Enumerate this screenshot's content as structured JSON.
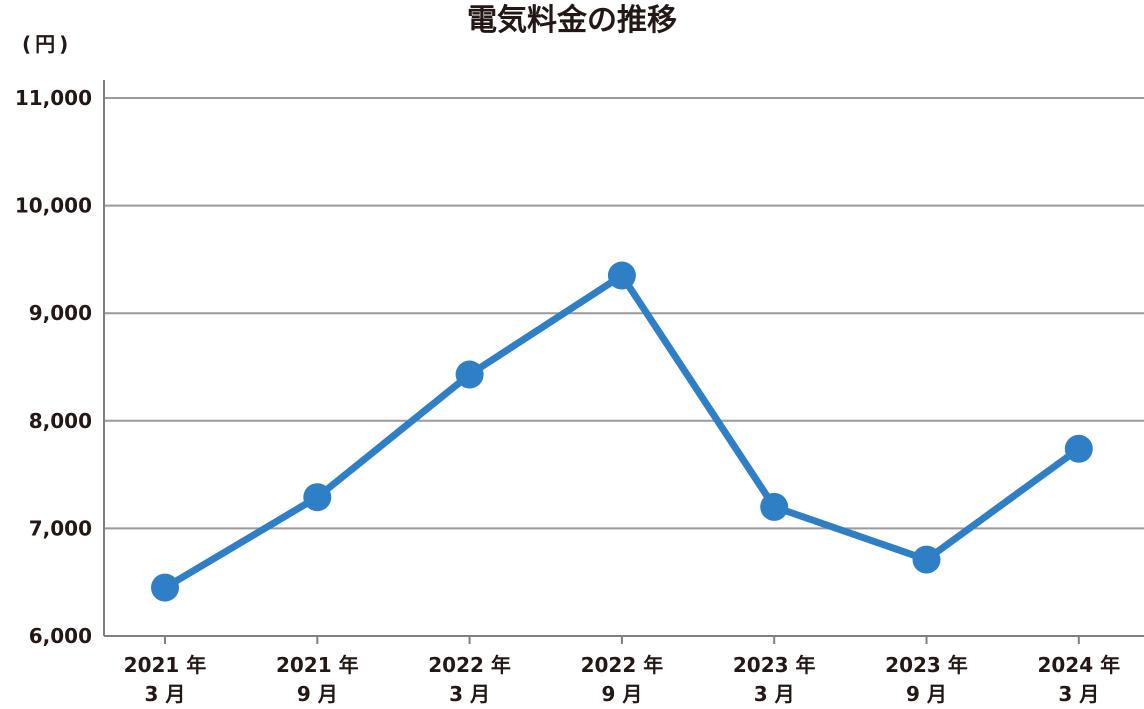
{
  "title": "電気料金の推移",
  "unit": "(円)",
  "chart_data": {
    "type": "line",
    "title": "電気料金の推移",
    "ylabel": "(円)",
    "xlabel": "",
    "ylim": [
      6000,
      11000
    ],
    "yticks": [
      "6,000",
      "7,000",
      "8,000",
      "9,000",
      "10,000",
      "11,000"
    ],
    "ytick_values": [
      6000,
      7000,
      8000,
      9000,
      10000,
      11000
    ],
    "grid": true,
    "categories": [
      {
        "line1": "2021 年",
        "line2": "3 月"
      },
      {
        "line1": "2021 年",
        "line2": "9 月"
      },
      {
        "line1": "2022 年",
        "line2": "3 月"
      },
      {
        "line1": "2022 年",
        "line2": "9 月"
      },
      {
        "line1": "2023 年",
        "line2": "3 月"
      },
      {
        "line1": "2023 年",
        "line2": "9 月"
      },
      {
        "line1": "2024 年",
        "line2": "3 月"
      }
    ],
    "values": [
      6450,
      7290,
      8430,
      9350,
      7200,
      6710,
      7740
    ],
    "color": "#2f7fc6",
    "grid_color": "#9a9a9a",
    "axis_color": "#808080"
  }
}
